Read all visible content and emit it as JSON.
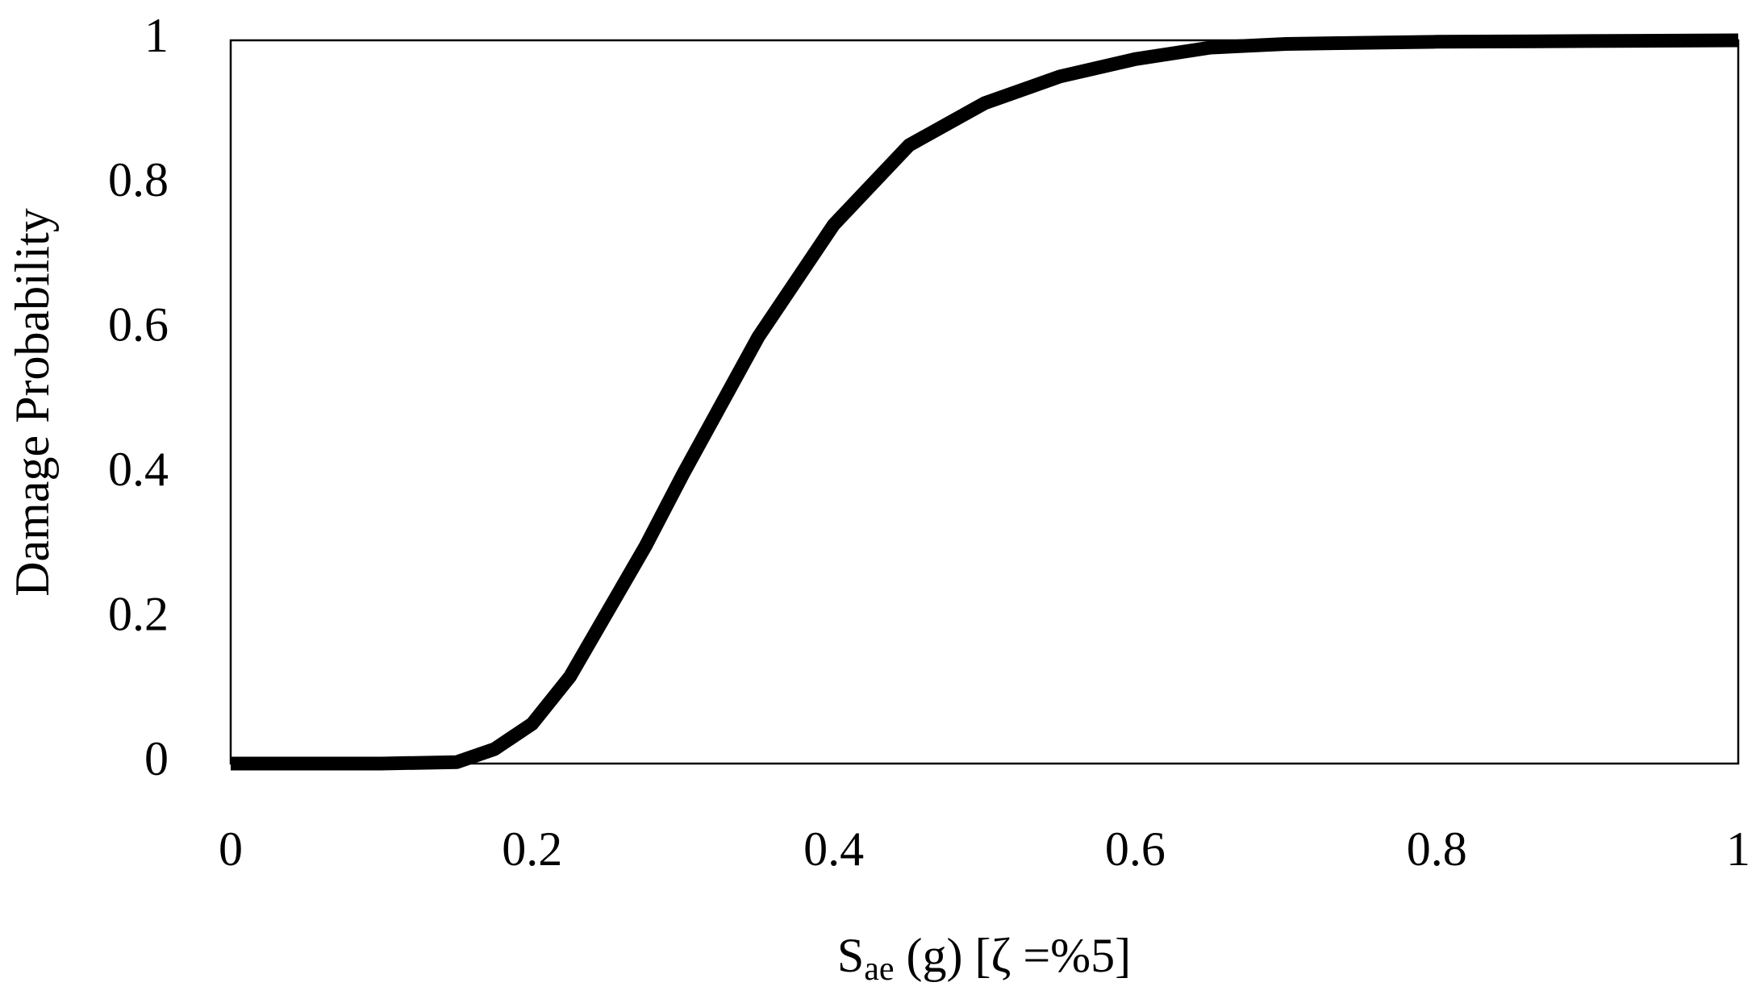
{
  "chart_data": {
    "type": "line",
    "x_label": {
      "main": "S",
      "subscript": "ae",
      "rest": " (g) [ζ =%5]"
    },
    "y_label": "Damage Probability",
    "x": [
      0,
      0.05,
      0.1,
      0.15,
      0.175,
      0.2,
      0.225,
      0.25,
      0.275,
      0.3,
      0.35,
      0.4,
      0.45,
      0.5,
      0.55,
      0.6,
      0.65,
      0.7,
      0.8,
      0.9,
      1
    ],
    "series": [
      {
        "name": "Damage Probability",
        "color": "#000000",
        "values": [
          0,
          0,
          0,
          0.002,
          0.02,
          0.055,
          0.12,
          0.21,
          0.3,
          0.4,
          0.59,
          0.745,
          0.855,
          0.913,
          0.95,
          0.974,
          0.99,
          0.995,
          0.998,
          0.999,
          1
        ]
      }
    ],
    "xlim": [
      0,
      1
    ],
    "ylim": [
      0,
      1
    ],
    "xticks": [
      0,
      0.2,
      0.4,
      0.6,
      0.8,
      1
    ],
    "yticks": [
      0,
      0.2,
      0.4,
      0.6,
      0.8,
      1
    ],
    "grid": false
  }
}
